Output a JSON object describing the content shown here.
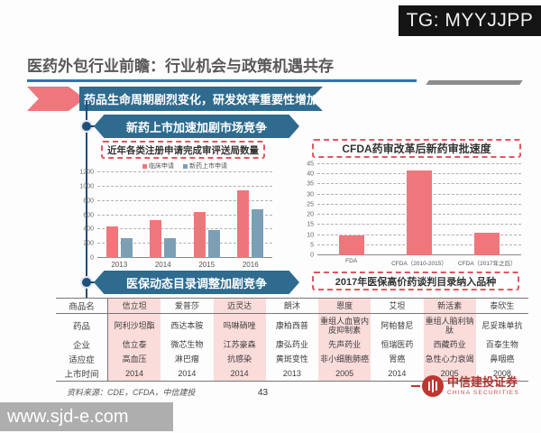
{
  "overlay": {
    "tg_label": "TG: MYYJJPP",
    "watermark": "www.sjd-e.com"
  },
  "header": {
    "title": "医药外包行业前瞻：行业机会与政策机遇共存"
  },
  "banners": {
    "main": "药品生命周期剧烈变化，研发效率重要性增加",
    "section1": "新药上市加速加剧市场竞争",
    "section2": "医保动态目录调整加剧竞争"
  },
  "chart_data": [
    {
      "type": "bar",
      "title": "近年各类注册申请完成审评送局数量",
      "categories": [
        "2013",
        "2014",
        "2015",
        "2016"
      ],
      "series": [
        {
          "name": "临床申请",
          "color": "#ef767b",
          "values": [
            440,
            530,
            650,
            950
          ]
        },
        {
          "name": "新药上市申请",
          "color": "#7d9fb6",
          "values": [
            280,
            280,
            390,
            680
          ]
        }
      ],
      "ylim": [
        0,
        1200
      ],
      "ytick_step": 200,
      "grid": true,
      "legend_position": "top"
    },
    {
      "type": "bar",
      "title": "CFDA药审改革后新药审批速度",
      "categories": [
        "FDA",
        "CFDA（2010-2015）",
        "CFDA（2017年之后）"
      ],
      "series": [
        {
          "name": "新药审批速度",
          "color": "#ef767b",
          "values": [
            10,
            42,
            11
          ]
        }
      ],
      "ylim": [
        0,
        45
      ],
      "ytick_step": 5,
      "grid": true,
      "legend_position": "none"
    }
  ],
  "table": {
    "title": "2017年医保高价药谈判目录纳入品种",
    "row_headers": [
      "商品名",
      "药品",
      "企业",
      "适应症",
      "上市时间"
    ],
    "columns": [
      {
        "highlight": true,
        "cells": [
          "信立坦",
          "阿利沙坦酯",
          "信立泰",
          "高血压",
          "2014"
        ]
      },
      {
        "highlight": false,
        "cells": [
          "爱普莎",
          "西达本胺",
          "微芯生物",
          "淋巴瘤",
          "2014"
        ]
      },
      {
        "highlight": true,
        "cells": [
          "迈灵达",
          "吗啉硝唑",
          "江苏豪森",
          "抗感染",
          "2014"
        ]
      },
      {
        "highlight": false,
        "cells": [
          "朗沐",
          "康柏西普",
          "康弘药业",
          "黄斑变性",
          "2013"
        ]
      },
      {
        "highlight": true,
        "cells": [
          "恩度",
          "重组人血管内皮抑制素",
          "先声药业",
          "非小细胞肺癌",
          "2005"
        ]
      },
      {
        "highlight": false,
        "cells": [
          "艾坦",
          "阿帕替尼",
          "恒瑞医药",
          "胃癌",
          "2014"
        ]
      },
      {
        "highlight": true,
        "cells": [
          "新活素",
          "重组人脑利钠肽",
          "西藏药业",
          "急性心力衰竭",
          "2005"
        ]
      },
      {
        "highlight": false,
        "cells": [
          "泰欣生",
          "尼妥珠单抗",
          "百泰生物",
          "鼻咽癌",
          "2008"
        ]
      }
    ]
  },
  "footer": {
    "source": "资料来源：CDE，CFDA，中信建投",
    "page_number": "43",
    "brand_cn": "中信建投证券",
    "brand_en": "CHINA SECURITIES"
  },
  "colors": {
    "accent_red": "#ef767b",
    "bar_blue": "#7d9fb6",
    "banner_blue": "#2e6b8f",
    "line_blue": "#1f4e79",
    "dashed_border": "#e0575f",
    "table_highlight": "#fadcdb",
    "rule_blue": "#2e74b5",
    "title_gray": "#595959"
  }
}
